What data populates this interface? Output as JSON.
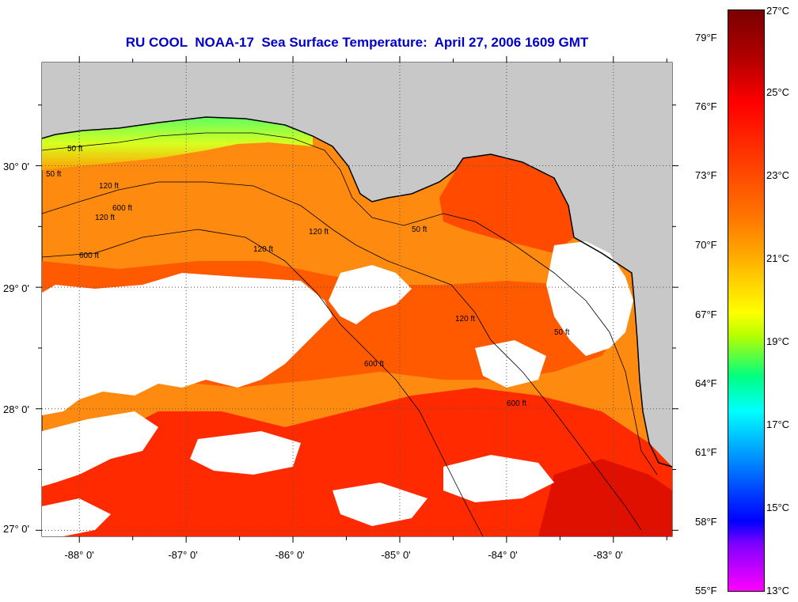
{
  "title": "RU COOL  NOAA-17  Sea Surface Temperature:  April 27, 2006 1609 GMT",
  "map": {
    "lat_labels": [
      "30° 0'",
      "29° 0'",
      "28° 0'",
      "27° 0'"
    ],
    "lon_labels": [
      "-88° 0'",
      "-87° 0'",
      "-86° 0'",
      "-85° 0'",
      "-84° 0'",
      "-83° 0'"
    ],
    "lat_range": [
      26.95,
      30.85
    ],
    "lon_range": [
      -88.35,
      -82.45
    ],
    "lat_ticks": [
      27,
      28,
      29,
      30
    ],
    "lon_ticks": [
      -88,
      -87,
      -86,
      -85,
      -84,
      -83
    ],
    "contour_labels": [
      "50 ft",
      "120 ft",
      "600 ft",
      "120 ft",
      "600 ft",
      "120 ft",
      "50 ft",
      "600 ft",
      "120 ft",
      "50 ft",
      "120 ft",
      "600 ft",
      "50 ft"
    ],
    "colors": {
      "land": "#c8c8c8",
      "cloud": "#ffffff",
      "warm_water": "#ff3c00",
      "mid_water": "#ff8c00",
      "cool_water": "#7fff40",
      "coast": "#000000"
    }
  },
  "colorbar": {
    "fahrenheit_labels": [
      "79°F",
      "76°F",
      "73°F",
      "70°F",
      "67°F",
      "64°F",
      "61°F",
      "58°F",
      "55°F"
    ],
    "celsius_labels": [
      "27°C",
      "25°C",
      "23°C",
      "21°C",
      "19°C",
      "17°C",
      "15°C",
      "13°C"
    ],
    "fahrenheit_values": [
      79,
      76,
      73,
      70,
      67,
      64,
      61,
      58,
      55
    ],
    "celsius_values": [
      27,
      25,
      23,
      21,
      19,
      17,
      15,
      13
    ]
  }
}
